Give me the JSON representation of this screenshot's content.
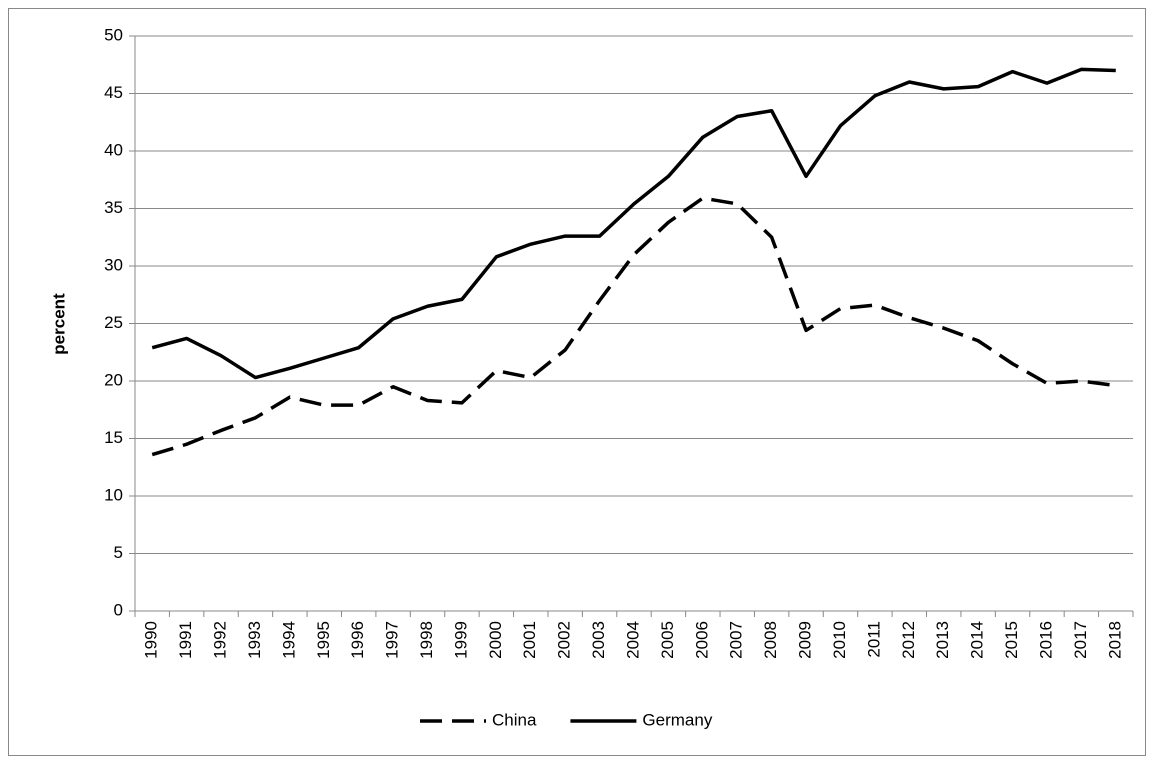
{
  "chart_data": {
    "type": "line",
    "y_label": "percent",
    "categories": [
      "1990",
      "1991",
      "1992",
      "1993",
      "1994",
      "1995",
      "1996",
      "1997",
      "1998",
      "1999",
      "2000",
      "2001",
      "2002",
      "2003",
      "2004",
      "2005",
      "2006",
      "2007",
      "2008",
      "2009",
      "2010",
      "2011",
      "2012",
      "2013",
      "2014",
      "2015",
      "2016",
      "2017",
      "2018"
    ],
    "series": [
      {
        "name": "China",
        "color": "#000000",
        "line_style": "dashed",
        "values": [
          13.6,
          14.5,
          15.7,
          16.8,
          18.6,
          17.9,
          17.9,
          19.5,
          18.3,
          18.1,
          20.9,
          20.3,
          22.7,
          27.0,
          31.0,
          33.8,
          35.9,
          35.4,
          32.5,
          24.4,
          26.3,
          26.6,
          25.5,
          24.6,
          23.5,
          21.5,
          19.8,
          20.0,
          19.6
        ]
      },
      {
        "name": "Germany",
        "color": "#000000",
        "line_style": "solid",
        "values": [
          22.9,
          23.7,
          22.2,
          20.3,
          21.1,
          22.0,
          22.9,
          25.4,
          26.5,
          27.1,
          30.8,
          31.9,
          32.6,
          32.6,
          35.4,
          37.8,
          41.2,
          43.0,
          43.5,
          37.8,
          42.2,
          44.8,
          46.0,
          45.4,
          45.6,
          46.9,
          45.9,
          47.1,
          47.0
        ]
      }
    ],
    "ylim": [
      0,
      50
    ],
    "yticks": [
      0,
      5,
      10,
      15,
      20,
      25,
      30,
      35,
      40,
      45,
      50
    ],
    "grid": true,
    "legend": "bottom"
  }
}
